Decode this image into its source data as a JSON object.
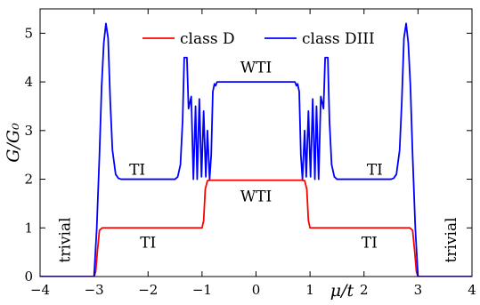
{
  "chart_data": {
    "type": "line",
    "title": "",
    "xlabel": "μ/t",
    "ylabel": "G/G₀",
    "xlim": [
      -4,
      4
    ],
    "ylim": [
      0,
      5.5
    ],
    "x_ticks": [
      -4,
      -3,
      -2,
      -1,
      0,
      1,
      2,
      3,
      4
    ],
    "x_tick_labels": [
      "−4",
      "−3",
      "−2",
      "−1",
      "0",
      "1",
      "2",
      "3",
      "4"
    ],
    "y_ticks": [
      0,
      1,
      2,
      3,
      4,
      5
    ],
    "y_tick_labels": [
      "0",
      "1",
      "2",
      "3",
      "4",
      "5"
    ],
    "grid": false,
    "legend_position": "top-center",
    "series": [
      {
        "name": "class D",
        "color": "#ff0000",
        "points": [
          [
            -4,
            0
          ],
          [
            -3.0,
            0
          ],
          [
            -2.97,
            0.1
          ],
          [
            -2.94,
            0.5
          ],
          [
            -2.9,
            0.95
          ],
          [
            -2.85,
            1.0
          ],
          [
            -1.0,
            1.0
          ],
          [
            -0.97,
            1.15
          ],
          [
            -0.94,
            1.8
          ],
          [
            -0.9,
            1.97
          ],
          [
            -0.85,
            1.98
          ],
          [
            0.85,
            1.98
          ],
          [
            0.9,
            1.97
          ],
          [
            0.94,
            1.8
          ],
          [
            0.97,
            1.15
          ],
          [
            1.0,
            1.0
          ],
          [
            2.85,
            1.0
          ],
          [
            2.9,
            0.95
          ],
          [
            2.94,
            0.5
          ],
          [
            2.97,
            0.1
          ],
          [
            3.0,
            0
          ],
          [
            4,
            0
          ]
        ]
      },
      {
        "name": "class DIII",
        "color": "#0000ff",
        "points": [
          [
            -4,
            0
          ],
          [
            -3.0,
            0
          ],
          [
            -2.95,
            1.0
          ],
          [
            -2.9,
            2.5
          ],
          [
            -2.86,
            3.9
          ],
          [
            -2.82,
            4.8
          ],
          [
            -2.78,
            5.2
          ],
          [
            -2.74,
            4.9
          ],
          [
            -2.7,
            3.6
          ],
          [
            -2.66,
            2.6
          ],
          [
            -2.6,
            2.1
          ],
          [
            -2.55,
            2.02
          ],
          [
            -2.5,
            2.0
          ],
          [
            -1.5,
            2.0
          ],
          [
            -1.45,
            2.05
          ],
          [
            -1.4,
            2.3
          ],
          [
            -1.36,
            3.2
          ],
          [
            -1.33,
            4.5
          ],
          [
            -1.28,
            4.5
          ],
          [
            -1.25,
            3.45
          ],
          [
            -1.2,
            3.7
          ],
          [
            -1.16,
            2.0
          ],
          [
            -1.12,
            3.5
          ],
          [
            -1.09,
            2.0
          ],
          [
            -1.05,
            3.65
          ],
          [
            -1.01,
            2.05
          ],
          [
            -0.97,
            3.4
          ],
          [
            -0.93,
            2.05
          ],
          [
            -0.9,
            3.0
          ],
          [
            -0.86,
            2.0
          ],
          [
            -0.83,
            2.5
          ],
          [
            -0.8,
            3.8
          ],
          [
            -0.77,
            3.96
          ],
          [
            -0.75,
            3.92
          ],
          [
            -0.72,
            4.0
          ],
          [
            0.72,
            4.0
          ],
          [
            0.75,
            3.92
          ],
          [
            0.77,
            3.96
          ],
          [
            0.8,
            3.8
          ],
          [
            0.83,
            2.5
          ],
          [
            0.86,
            2.0
          ],
          [
            0.9,
            3.0
          ],
          [
            0.93,
            2.05
          ],
          [
            0.97,
            3.4
          ],
          [
            1.01,
            2.05
          ],
          [
            1.05,
            3.65
          ],
          [
            1.09,
            2.0
          ],
          [
            1.12,
            3.5
          ],
          [
            1.16,
            2.0
          ],
          [
            1.2,
            3.7
          ],
          [
            1.25,
            3.45
          ],
          [
            1.28,
            4.5
          ],
          [
            1.33,
            4.5
          ],
          [
            1.36,
            3.2
          ],
          [
            1.4,
            2.3
          ],
          [
            1.45,
            2.05
          ],
          [
            1.5,
            2.0
          ],
          [
            2.5,
            2.0
          ],
          [
            2.55,
            2.02
          ],
          [
            2.6,
            2.1
          ],
          [
            2.66,
            2.6
          ],
          [
            2.7,
            3.6
          ],
          [
            2.74,
            4.9
          ],
          [
            2.78,
            5.2
          ],
          [
            2.82,
            4.8
          ],
          [
            2.86,
            3.9
          ],
          [
            2.9,
            2.5
          ],
          [
            2.95,
            1.0
          ],
          [
            3.0,
            0
          ],
          [
            4,
            0
          ]
        ]
      }
    ],
    "annotations": [
      {
        "text": "WTI",
        "x": 0,
        "y": 4.3,
        "rotate": false
      },
      {
        "text": "WTI",
        "x": 0,
        "y": 1.65,
        "rotate": false
      },
      {
        "text": "TI",
        "x": -2.2,
        "y": 2.2,
        "rotate": false
      },
      {
        "text": "TI",
        "x": 2.2,
        "y": 2.2,
        "rotate": false
      },
      {
        "text": "TI",
        "x": -2.0,
        "y": 0.7,
        "rotate": false
      },
      {
        "text": "TI",
        "x": 2.1,
        "y": 0.7,
        "rotate": false
      },
      {
        "text": "trivial",
        "x": -3.55,
        "y": 0.75,
        "rotate": true
      },
      {
        "text": "trivial",
        "x": 3.6,
        "y": 0.75,
        "rotate": true
      }
    ]
  }
}
